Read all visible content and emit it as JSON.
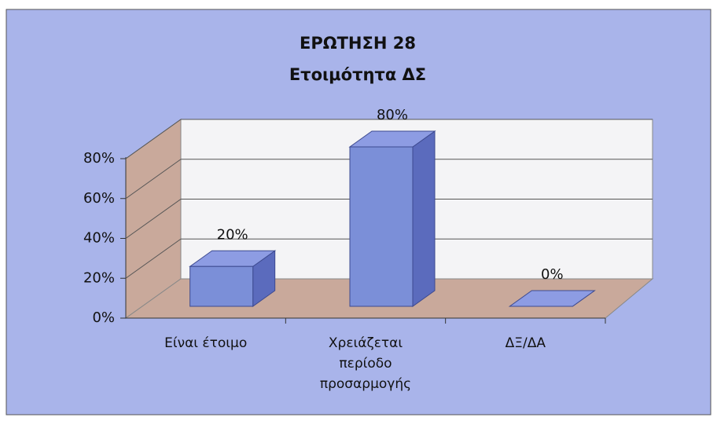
{
  "chart_data": {
    "type": "bar3d",
    "title": "ΕΡΩΤΗΣΗ 28",
    "subtitle": "Ετοιμότητα ΔΣ",
    "categories": [
      "Είναι έτοιμο",
      "Χρειάζεται περίοδο προσαρμογής",
      "ΔΞ/ΔΑ"
    ],
    "values": [
      20,
      80,
      0
    ],
    "value_labels": [
      "20%",
      "80%",
      "0%"
    ],
    "color": "#7b8fd8",
    "ylim": [
      0,
      80
    ],
    "yticks": [
      {
        "value": 0,
        "label": "0%"
      },
      {
        "value": 20,
        "label": "20%"
      },
      {
        "value": 40,
        "label": "40%"
      },
      {
        "value": 60,
        "label": "60%"
      },
      {
        "value": 80,
        "label": "80%"
      }
    ],
    "grid": true
  }
}
